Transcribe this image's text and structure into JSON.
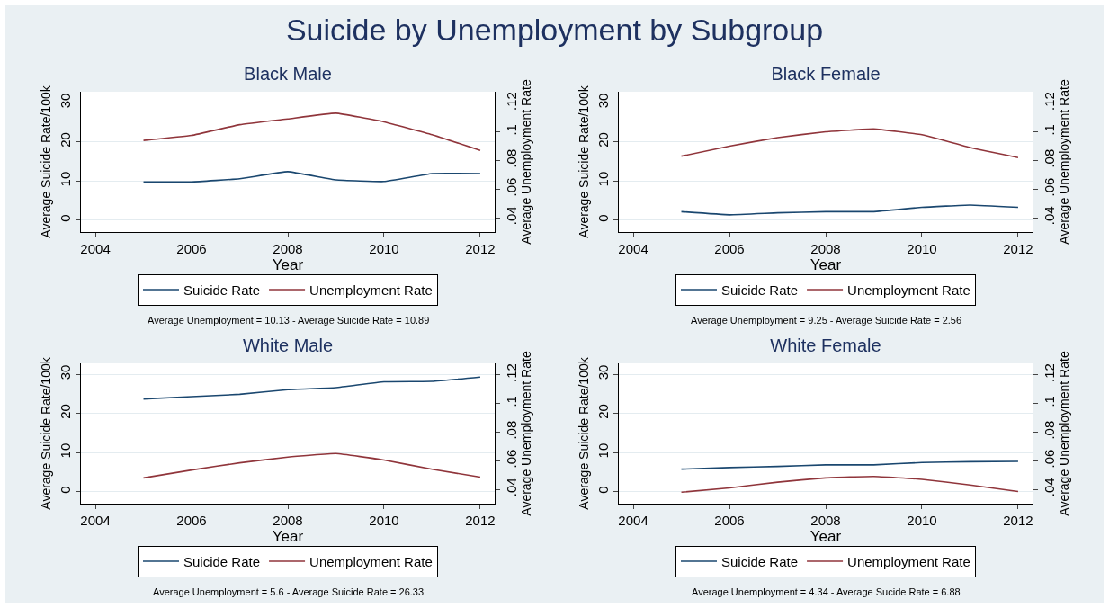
{
  "chart_data": [
    {
      "type": "line",
      "title": "Suicide by Unemployment by Subgroup",
      "subtitle": "Black Male",
      "xlabel": "Year",
      "ylabel": "Average Suicide Rate/100k",
      "y2label": "Average Unemployment Rate",
      "x": [
        2005,
        2006,
        2007,
        2008,
        2009,
        2010,
        2011,
        2012
      ],
      "series": [
        {
          "name": "Suicide Rate",
          "color": "#1a476f",
          "values": [
            9.8,
            9.8,
            10.6,
            12.4,
            10.3,
            9.9,
            11.9,
            11.9
          ]
        },
        {
          "name": "Unemployment Rate",
          "color": "#90353b",
          "axis": "y2",
          "values": [
            0.094,
            0.0975,
            0.105,
            0.109,
            0.113,
            0.107,
            0.098,
            0.087
          ]
        }
      ],
      "xlim": [
        2003.7,
        2012.3
      ],
      "xticks": [
        2004,
        2006,
        2008,
        2010,
        2012
      ],
      "ylim": [
        -3,
        32.8
      ],
      "yticks": [
        0,
        10,
        20,
        30
      ],
      "y2lim": [
        0.03,
        0.128
      ],
      "y2ticks": [
        {
          "value": 0.04,
          "label": ".04"
        },
        {
          "value": 0.06,
          "label": ".06"
        },
        {
          "value": 0.08,
          "label": ".08"
        },
        {
          "value": 0.1,
          "label": ".1"
        },
        {
          "value": 0.12,
          "label": ".12"
        }
      ],
      "grid": "y",
      "legend": "bottom",
      "annotations": [
        "Average Unemployment = 10.13 - Average Suicide Rate = 10.89"
      ]
    },
    {
      "type": "line",
      "title": "Black Female",
      "xlabel": "Year",
      "ylabel": "Average Suicide Rate/100k",
      "y2label": "Average Unemployment Rate",
      "x": [
        2005,
        2006,
        2007,
        2008,
        2009,
        2010,
        2011,
        2012
      ],
      "series": [
        {
          "name": "Suicide Rate",
          "color": "#1a476f",
          "values": [
            2.2,
            1.4,
            1.9,
            2.2,
            2.2,
            3.3,
            3.9,
            3.3
          ]
        },
        {
          "name": "Unemployment Rate",
          "color": "#90353b",
          "axis": "y2",
          "values": [
            0.083,
            0.09,
            0.096,
            0.1,
            0.102,
            0.098,
            0.089,
            0.082
          ]
        }
      ],
      "xlim": [
        2003.7,
        2012.3
      ],
      "xticks": [
        2004,
        2006,
        2008,
        2010,
        2012
      ],
      "ylim": [
        -3,
        32.8
      ],
      "yticks": [
        0,
        10,
        20,
        30
      ],
      "y2lim": [
        0.03,
        0.128
      ],
      "y2ticks": [
        {
          "value": 0.04,
          "label": ".04"
        },
        {
          "value": 0.06,
          "label": ".06"
        },
        {
          "value": 0.08,
          "label": ".08"
        },
        {
          "value": 0.1,
          "label": ".1"
        },
        {
          "value": 0.12,
          "label": ".12"
        }
      ],
      "grid": "y",
      "legend": "bottom",
      "annotations": [
        "Average Unemployment = 9.25 - Average Suicide Rate = 2.56"
      ]
    },
    {
      "type": "line",
      "title": "White Male",
      "xlabel": "Year",
      "ylabel": "Average Suicide Rate/100k",
      "y2label": "Average Unemployment Rate",
      "x": [
        2005,
        2006,
        2007,
        2008,
        2009,
        2010,
        2011,
        2012
      ],
      "series": [
        {
          "name": "Suicide Rate",
          "color": "#1a476f",
          "values": [
            23.7,
            24.3,
            24.9,
            26.1,
            26.6,
            28.1,
            28.2,
            29.3
          ]
        },
        {
          "name": "Unemployment Rate",
          "color": "#90353b",
          "axis": "y2",
          "values": [
            0.048,
            0.0535,
            0.0585,
            0.0625,
            0.065,
            0.0605,
            0.054,
            0.0485
          ]
        }
      ],
      "xlim": [
        2003.7,
        2012.3
      ],
      "xticks": [
        2004,
        2006,
        2008,
        2010,
        2012
      ],
      "ylim": [
        -3,
        32.8
      ],
      "yticks": [
        0,
        10,
        20,
        30
      ],
      "y2lim": [
        0.03,
        0.128
      ],
      "y2ticks": [
        {
          "value": 0.04,
          "label": ".04"
        },
        {
          "value": 0.06,
          "label": ".06"
        },
        {
          "value": 0.08,
          "label": ".08"
        },
        {
          "value": 0.1,
          "label": ".1"
        },
        {
          "value": 0.12,
          "label": ".12"
        }
      ],
      "grid": "y",
      "legend": "bottom",
      "annotations": [
        "Average Unemployment = 5.6 - Average Suicide Rate = 26.33"
      ]
    },
    {
      "type": "line",
      "title": "White Female",
      "xlabel": "Year",
      "ylabel": "Average Suicide Rate/100k",
      "y2label": "Average Unemployment Rate",
      "x": [
        2005,
        2006,
        2007,
        2008,
        2009,
        2010,
        2011,
        2012
      ],
      "series": [
        {
          "name": "Suicide Rate",
          "color": "#1a476f",
          "values": [
            5.8,
            6.2,
            6.5,
            6.9,
            6.9,
            7.5,
            7.7,
            7.8
          ]
        },
        {
          "name": "Unemployment Rate",
          "color": "#90353b",
          "axis": "y2",
          "values": [
            0.038,
            0.041,
            0.045,
            0.048,
            0.049,
            0.047,
            0.043,
            0.0385
          ]
        }
      ],
      "xlim": [
        2003.7,
        2012.3
      ],
      "xticks": [
        2004,
        2006,
        2008,
        2010,
        2012
      ],
      "ylim": [
        -3,
        32.8
      ],
      "yticks": [
        0,
        10,
        20,
        30
      ],
      "y2lim": [
        0.03,
        0.128
      ],
      "y2ticks": [
        {
          "value": 0.04,
          "label": ".04"
        },
        {
          "value": 0.06,
          "label": ".06"
        },
        {
          "value": 0.08,
          "label": ".08"
        },
        {
          "value": 0.1,
          "label": ".1"
        },
        {
          "value": 0.12,
          "label": ".12"
        }
      ],
      "grid": "y",
      "legend": "bottom",
      "annotations": [
        "Average Unemployment = 4.34 - Average Sucide Rate = 6.88"
      ]
    }
  ]
}
